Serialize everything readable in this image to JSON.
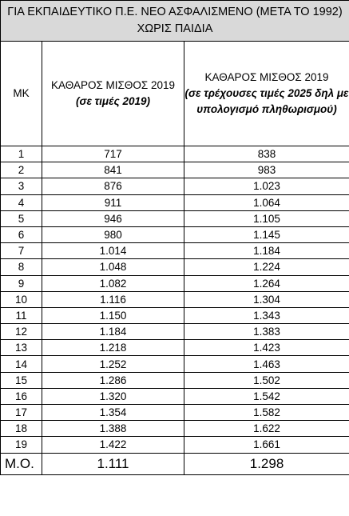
{
  "table": {
    "title": "ΓΙΑ ΕΚΠΑΙΔΕΥΤΙΚΟ Π.Ε. ΝΕΟ ΑΣΦΑΛΙΣΜΕΝΟ (ΜΕΤΑ ΤΟ 1992) ΧΩΡΙΣ ΠΑΙΔΙΑ",
    "headers": {
      "mk": "ΜΚ",
      "col2_title": "ΚΑΘΑΡΟΣ ΜΙΣΘΟΣ 2019",
      "col2_note": "(σε τιμές 2019)",
      "col3_title": "ΚΑΘΑΡΟΣ ΜΙΣΘΟΣ 2019",
      "col3_note": "(σε τρέχουσες τιμές 2025 δηλ με υπολογισμό πληθωρισμού)"
    },
    "rows": [
      {
        "mk": "1",
        "v2019": "717",
        "v2025": "838"
      },
      {
        "mk": "2",
        "v2019": "841",
        "v2025": "983"
      },
      {
        "mk": "3",
        "v2019": "876",
        "v2025": "1.023"
      },
      {
        "mk": "4",
        "v2019": "911",
        "v2025": "1.064"
      },
      {
        "mk": "5",
        "v2019": "946",
        "v2025": "1.105"
      },
      {
        "mk": "6",
        "v2019": "980",
        "v2025": "1.145"
      },
      {
        "mk": "7",
        "v2019": "1.014",
        "v2025": "1.184"
      },
      {
        "mk": "8",
        "v2019": "1.048",
        "v2025": "1.224"
      },
      {
        "mk": "9",
        "v2019": "1.082",
        "v2025": "1.264"
      },
      {
        "mk": "10",
        "v2019": "1.116",
        "v2025": "1.304"
      },
      {
        "mk": "11",
        "v2019": "1.150",
        "v2025": "1.343"
      },
      {
        "mk": "12",
        "v2019": "1.184",
        "v2025": "1.383"
      },
      {
        "mk": "13",
        "v2019": "1.218",
        "v2025": "1.423"
      },
      {
        "mk": "14",
        "v2019": "1.252",
        "v2025": "1.463"
      },
      {
        "mk": "15",
        "v2019": "1.286",
        "v2025": "1.502"
      },
      {
        "mk": "16",
        "v2019": "1.320",
        "v2025": "1.542"
      },
      {
        "mk": "17",
        "v2019": "1.354",
        "v2025": "1.582"
      },
      {
        "mk": "18",
        "v2019": "1.388",
        "v2025": "1.622"
      },
      {
        "mk": "19",
        "v2019": "1.422",
        "v2025": "1.661"
      }
    ],
    "average": {
      "label": "Μ.Ο.",
      "v2019": "1.111",
      "v2025": "1.298"
    },
    "colors": {
      "title_background": "#d9d9d9",
      "border": "#000000"
    }
  }
}
